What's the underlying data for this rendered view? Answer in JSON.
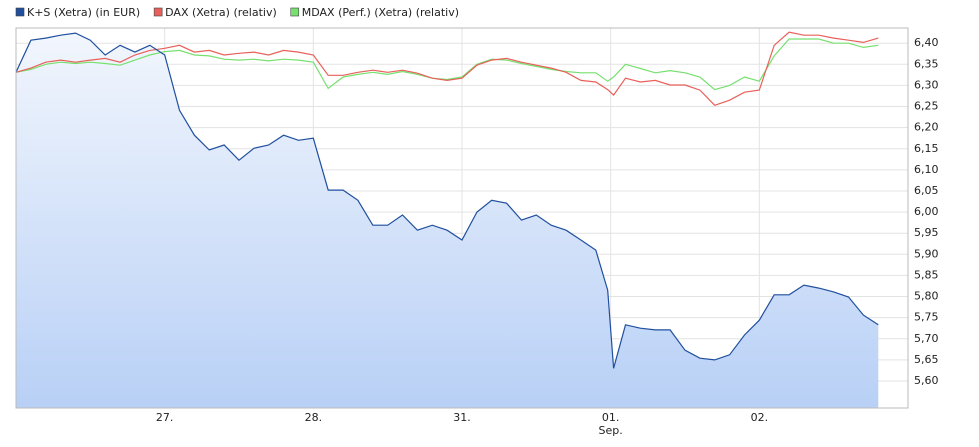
{
  "chart_data": {
    "type": "line",
    "series": [
      {
        "name": "K+S (Xetra) (in EUR)",
        "color": "#1f4f9e",
        "area": true,
        "values": [
          6.331,
          6.407,
          6.412,
          6.419,
          6.424,
          6.407,
          6.372,
          6.395,
          6.379,
          6.395,
          6.372,
          6.241,
          6.182,
          6.147,
          6.159,
          6.123,
          6.151,
          6.159,
          6.182,
          6.17,
          6.175,
          6.052,
          6.052,
          6.028,
          5.969,
          5.969,
          5.993,
          5.957,
          5.969,
          5.957,
          5.934,
          6.0,
          6.028,
          6.021,
          5.981,
          5.993,
          5.969,
          5.957,
          5.934,
          5.91,
          5.815,
          5.63,
          5.733,
          5.725,
          5.721,
          5.721,
          5.673,
          5.654,
          5.65,
          5.662,
          5.709,
          5.744,
          5.804,
          5.804,
          5.827,
          5.82,
          5.811,
          5.799,
          5.756,
          5.733
        ]
      },
      {
        "name": "DAX (Xetra) (relativ)",
        "color": "#e8605a",
        "values": [
          6.331,
          6.341,
          6.355,
          6.36,
          6.355,
          6.36,
          6.364,
          6.355,
          6.372,
          6.383,
          6.388,
          6.395,
          6.379,
          6.383,
          6.372,
          6.376,
          6.379,
          6.372,
          6.383,
          6.379,
          6.372,
          6.324,
          6.324,
          6.331,
          6.336,
          6.331,
          6.336,
          6.329,
          6.317,
          6.312,
          6.317,
          6.348,
          6.36,
          6.364,
          6.355,
          6.348,
          6.341,
          6.331,
          6.312,
          6.308,
          6.29,
          6.277,
          6.317,
          6.308,
          6.312,
          6.301,
          6.301,
          6.289,
          6.253,
          6.265,
          6.284,
          6.289,
          6.395,
          6.426,
          6.419,
          6.419,
          6.412,
          6.407,
          6.402,
          6.412
        ]
      },
      {
        "name": "MDAX (Perf.) (Xetra) (relativ)",
        "color": "#77e06f",
        "values": [
          6.331,
          6.338,
          6.35,
          6.355,
          6.352,
          6.355,
          6.352,
          6.348,
          6.36,
          6.372,
          6.38,
          6.383,
          6.372,
          6.37,
          6.362,
          6.36,
          6.362,
          6.358,
          6.362,
          6.36,
          6.355,
          6.293,
          6.32,
          6.326,
          6.331,
          6.326,
          6.333,
          6.326,
          6.317,
          6.314,
          6.32,
          6.35,
          6.362,
          6.36,
          6.352,
          6.345,
          6.338,
          6.333,
          6.33,
          6.33,
          6.31,
          6.32,
          6.35,
          6.34,
          6.33,
          6.335,
          6.33,
          6.32,
          6.29,
          6.3,
          6.32,
          6.31,
          6.37,
          6.41,
          6.41,
          6.41,
          6.4,
          6.4,
          6.39,
          6.395
        ]
      }
    ],
    "x": [
      0,
      0.1,
      0.2,
      0.3,
      0.4,
      0.5,
      0.6,
      0.7,
      0.8,
      0.9,
      1,
      1.1,
      1.2,
      1.3,
      1.4,
      1.5,
      1.6,
      1.7,
      1.8,
      1.9,
      2,
      2.1,
      2.2,
      2.3,
      2.4,
      2.5,
      2.6,
      2.7,
      2.8,
      2.9,
      3,
      3.1,
      3.2,
      3.3,
      3.4,
      3.5,
      3.6,
      3.7,
      3.8,
      3.9,
      3.98,
      4.02,
      4.1,
      4.2,
      4.3,
      4.4,
      4.5,
      4.6,
      4.7,
      4.8,
      4.9,
      5,
      5.1,
      5.2,
      5.3,
      5.4,
      5.5,
      5.6,
      5.7,
      5.8
    ],
    "xlim": [
      0,
      6
    ],
    "xticks": [
      {
        "value": 1,
        "label": "27."
      },
      {
        "value": 2,
        "label": "28."
      },
      {
        "value": 3,
        "label": "31."
      },
      {
        "value": 4,
        "label": "01."
      },
      {
        "value": 5,
        "label": "02."
      }
    ],
    "x_month_label": {
      "value": 4,
      "label": "Sep."
    },
    "ylim": [
      5.536,
      6.436
    ],
    "yticks": [
      {
        "value": 5.6,
        "label": "5,60"
      },
      {
        "value": 5.65,
        "label": "5,65"
      },
      {
        "value": 5.7,
        "label": "5,70"
      },
      {
        "value": 5.75,
        "label": "5,75"
      },
      {
        "value": 5.8,
        "label": "5,80"
      },
      {
        "value": 5.85,
        "label": "5,85"
      },
      {
        "value": 5.9,
        "label": "5,90"
      },
      {
        "value": 5.95,
        "label": "5,95"
      },
      {
        "value": 6.0,
        "label": "6,00"
      },
      {
        "value": 6.05,
        "label": "6,05"
      },
      {
        "value": 6.1,
        "label": "6,10"
      },
      {
        "value": 6.15,
        "label": "6,15"
      },
      {
        "value": 6.2,
        "label": "6,20"
      },
      {
        "value": 6.25,
        "label": "6,25"
      },
      {
        "value": 6.3,
        "label": "6,30"
      },
      {
        "value": 6.35,
        "label": "6,35"
      },
      {
        "value": 6.4,
        "label": "6,40"
      }
    ],
    "grid": true
  }
}
